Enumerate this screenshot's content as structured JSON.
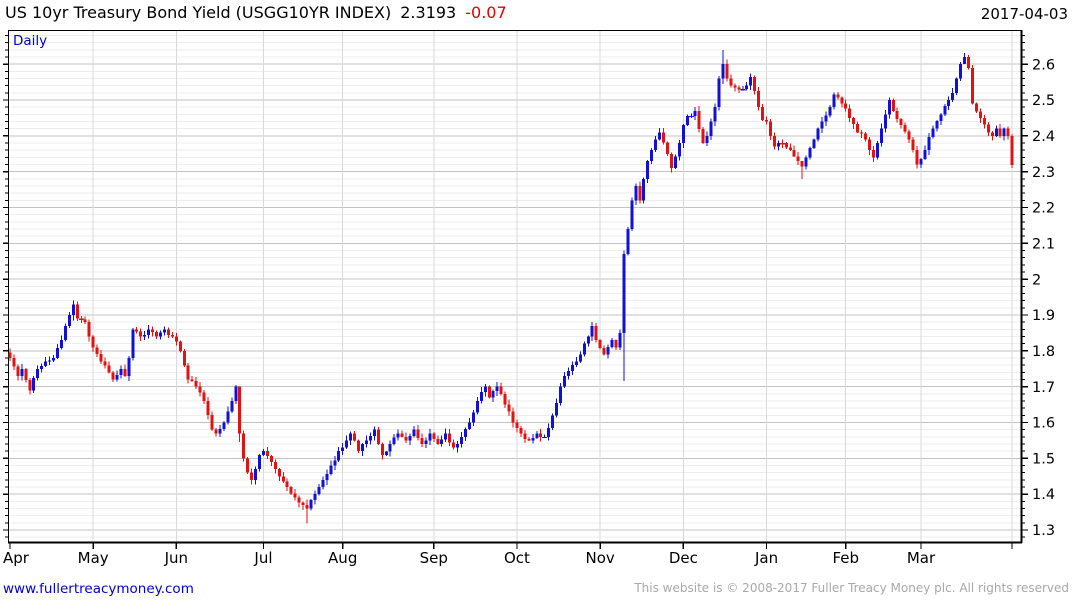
{
  "header": {
    "title": "US 10yr Treasury Bond Yield (USGG10YR INDEX)",
    "last_value": "2.3193",
    "change": "-0.07",
    "date": "2017-04-03"
  },
  "chart": {
    "mode_label": "Daily"
  },
  "footer": {
    "website_link": "www.fullertreacymoney.com",
    "copyright": "This website is © 2008-2017 Fuller Treacy Money plc. All rights reserved"
  },
  "colors": {
    "up_candle": "#1111d6",
    "down_candle": "#e01212",
    "grid_major": "#c3c3c3",
    "grid_minor": "#ededed",
    "grid_vertical": "#d9d9d9",
    "axis": "#000000",
    "title_text": "#000000",
    "change_negative": "#dd0000",
    "link": "#0000cc",
    "copyright_text": "#a8a8a8",
    "mode_label": "#0000bb"
  },
  "chart_data": {
    "type": "candlestick-ohlc",
    "title": "US 10yr Treasury Bond Yield (USGG10YR INDEX)",
    "timeframe": "Daily",
    "last_close": 2.3193,
    "change": -0.07,
    "y_axis": {
      "ticks": [
        2.6,
        2.5,
        2.4,
        2.3,
        2.2,
        2.1,
        2.0,
        1.9,
        1.8,
        1.7,
        1.6,
        1.5,
        1.4,
        1.3
      ],
      "minor_step": 0.02,
      "value_range": [
        1.2637,
        2.6955
      ]
    },
    "x_axis": {
      "total_slots": 256,
      "total_candles": 254,
      "month_ticks": [
        {
          "label": "Apr",
          "index": 0
        },
        {
          "label": "May",
          "index": 21
        },
        {
          "label": "Jun",
          "index": 42
        },
        {
          "label": "Jul",
          "index": 64
        },
        {
          "label": "Aug",
          "index": 84
        },
        {
          "label": "Sep",
          "index": 107
        },
        {
          "label": "Oct",
          "index": 128
        },
        {
          "label": "Nov",
          "index": 149
        },
        {
          "label": "Dec",
          "index": 170
        },
        {
          "label": "Jan",
          "index": 191
        },
        {
          "label": "Feb",
          "index": 211
        },
        {
          "label": "Mar",
          "index": 230
        },
        {
          "label": "",
          "index": 253
        }
      ]
    },
    "anchors": [
      [
        0,
        1.78
      ],
      [
        2,
        1.73
      ],
      [
        3,
        1.75
      ],
      [
        5,
        1.69
      ],
      [
        7,
        1.75
      ],
      [
        9,
        1.77
      ],
      [
        11,
        1.78
      ],
      [
        13,
        1.83
      ],
      [
        15,
        1.9
      ],
      [
        16,
        1.93
      ],
      [
        17,
        1.89
      ],
      [
        19,
        1.88
      ],
      [
        21,
        1.81
      ],
      [
        23,
        1.77
      ],
      [
        25,
        1.74
      ],
      [
        26,
        1.72
      ],
      [
        28,
        1.75
      ],
      [
        29,
        1.73
      ],
      [
        30,
        1.78
      ],
      [
        31,
        1.86
      ],
      [
        33,
        1.84
      ],
      [
        35,
        1.86
      ],
      [
        37,
        1.84
      ],
      [
        39,
        1.86
      ],
      [
        41,
        1.84
      ],
      [
        43,
        1.8
      ],
      [
        45,
        1.72
      ],
      [
        47,
        1.7
      ],
      [
        49,
        1.66
      ],
      [
        51,
        1.58
      ],
      [
        52,
        1.57
      ],
      [
        54,
        1.6
      ],
      [
        56,
        1.66
      ],
      [
        57,
        1.7
      ],
      [
        58,
        1.57
      ],
      [
        59,
        1.5
      ],
      [
        60,
        1.46
      ],
      [
        61,
        1.44
      ],
      [
        62,
        1.47
      ],
      [
        63,
        1.51
      ],
      [
        64,
        1.52
      ],
      [
        66,
        1.49
      ],
      [
        68,
        1.45
      ],
      [
        70,
        1.42
      ],
      [
        72,
        1.39
      ],
      [
        74,
        1.37
      ],
      [
        75,
        1.36
      ],
      [
        77,
        1.4
      ],
      [
        79,
        1.44
      ],
      [
        81,
        1.48
      ],
      [
        83,
        1.52
      ],
      [
        85,
        1.55
      ],
      [
        86,
        1.57
      ],
      [
        88,
        1.52
      ],
      [
        90,
        1.55
      ],
      [
        92,
        1.58
      ],
      [
        94,
        1.51
      ],
      [
        96,
        1.54
      ],
      [
        98,
        1.57
      ],
      [
        100,
        1.55
      ],
      [
        102,
        1.58
      ],
      [
        104,
        1.54
      ],
      [
        106,
        1.57
      ],
      [
        108,
        1.54
      ],
      [
        110,
        1.57
      ],
      [
        112,
        1.53
      ],
      [
        114,
        1.56
      ],
      [
        116,
        1.6
      ],
      [
        118,
        1.66
      ],
      [
        120,
        1.7
      ],
      [
        121,
        1.67
      ],
      [
        123,
        1.7
      ],
      [
        125,
        1.65
      ],
      [
        127,
        1.6
      ],
      [
        129,
        1.57
      ],
      [
        131,
        1.55
      ],
      [
        133,
        1.57
      ],
      [
        135,
        1.56
      ],
      [
        137,
        1.62
      ],
      [
        139,
        1.7
      ],
      [
        140,
        1.73
      ],
      [
        142,
        1.76
      ],
      [
        144,
        1.79
      ],
      [
        146,
        1.84
      ],
      [
        147,
        1.87
      ],
      [
        148,
        1.83
      ],
      [
        150,
        1.79
      ],
      [
        152,
        1.83
      ],
      [
        153,
        1.81
      ],
      [
        154,
        1.85
      ],
      [
        155,
        2.07
      ],
      [
        156,
        2.14
      ],
      [
        157,
        2.22
      ],
      [
        158,
        2.26
      ],
      [
        159,
        2.22
      ],
      [
        160,
        2.28
      ],
      [
        161,
        2.33
      ],
      [
        162,
        2.36
      ],
      [
        163,
        2.39
      ],
      [
        164,
        2.41
      ],
      [
        166,
        2.35
      ],
      [
        167,
        2.31
      ],
      [
        169,
        2.38
      ],
      [
        170,
        2.43
      ],
      [
        171,
        2.455
      ],
      [
        173,
        2.47
      ],
      [
        175,
        2.38
      ],
      [
        176,
        2.4
      ],
      [
        177,
        2.44
      ],
      [
        178,
        2.48
      ],
      [
        179,
        2.56
      ],
      [
        180,
        2.6
      ],
      [
        181,
        2.56
      ],
      [
        182,
        2.54
      ],
      [
        184,
        2.53
      ],
      [
        186,
        2.54
      ],
      [
        187,
        2.565
      ],
      [
        189,
        2.48
      ],
      [
        190,
        2.445
      ],
      [
        191,
        2.44
      ],
      [
        193,
        2.37
      ],
      [
        195,
        2.38
      ],
      [
        197,
        2.36
      ],
      [
        199,
        2.33
      ],
      [
        200,
        2.315
      ],
      [
        201,
        2.34
      ],
      [
        203,
        2.39
      ],
      [
        205,
        2.44
      ],
      [
        207,
        2.48
      ],
      [
        208,
        2.515
      ],
      [
        210,
        2.49
      ],
      [
        212,
        2.45
      ],
      [
        214,
        2.41
      ],
      [
        216,
        2.39
      ],
      [
        217,
        2.36
      ],
      [
        218,
        2.34
      ],
      [
        219,
        2.38
      ],
      [
        220,
        2.42
      ],
      [
        221,
        2.46
      ],
      [
        222,
        2.5
      ],
      [
        223,
        2.47
      ],
      [
        225,
        2.43
      ],
      [
        227,
        2.39
      ],
      [
        228,
        2.36
      ],
      [
        229,
        2.32
      ],
      [
        231,
        2.36
      ],
      [
        233,
        2.42
      ],
      [
        235,
        2.46
      ],
      [
        237,
        2.5
      ],
      [
        238,
        2.52
      ],
      [
        239,
        2.56
      ],
      [
        240,
        2.6
      ],
      [
        241,
        2.62
      ],
      [
        242,
        2.59
      ],
      [
        243,
        2.49
      ],
      [
        245,
        2.45
      ],
      [
        247,
        2.41
      ],
      [
        248,
        2.4
      ],
      [
        249,
        2.42
      ],
      [
        250,
        2.4
      ],
      [
        251,
        2.42
      ],
      [
        252,
        2.4
      ],
      [
        253,
        2.3193
      ]
    ],
    "wick_overrides": {
      "16": [
        1.94,
        1.885
      ],
      "58": [
        1.7,
        1.545
      ],
      "75": [
        1.385,
        1.318
      ],
      "155": [
        2.08,
        1.716
      ],
      "180": [
        2.64,
        2.545
      ],
      "200": [
        2.33,
        2.28
      ],
      "241": [
        2.632,
        2.6
      ],
      "253": [
        2.405,
        2.31
      ]
    },
    "noise_seed": 11
  }
}
